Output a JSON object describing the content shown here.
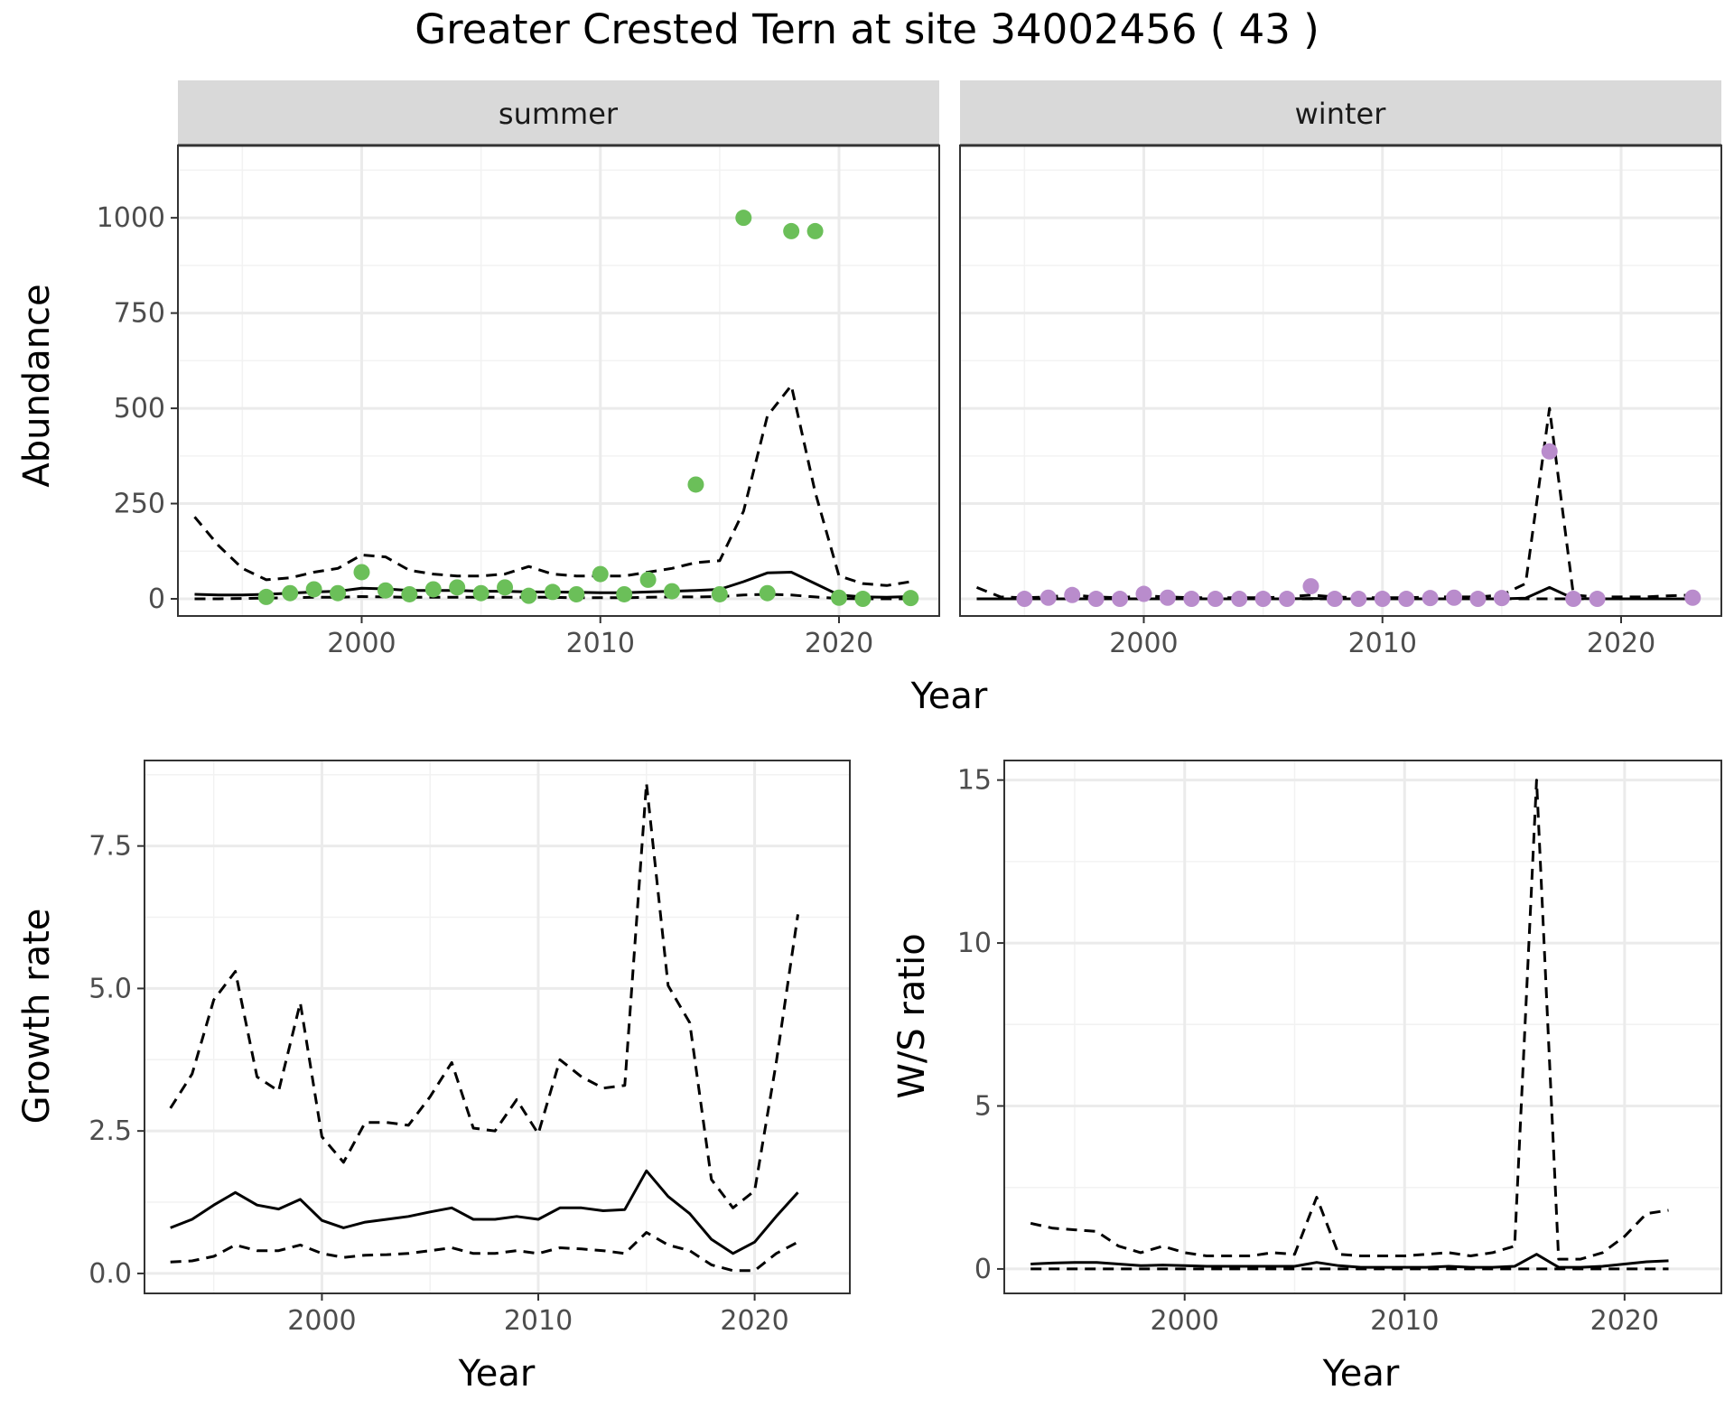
{
  "title": "Greater Crested Tern at site 34002456 ( 43 )",
  "colors": {
    "summer_points": "#6bbf59",
    "winter_points": "#b98ccc",
    "lines": "#000000",
    "strip": "#d9d9d9"
  },
  "chart_data": [
    {
      "type": "line",
      "facet": "summer",
      "xlabel": "Year",
      "ylabel": "Abundance",
      "xlim": [
        1992.3,
        2024.2
      ],
      "ylim": [
        -45,
        1190
      ],
      "xticks": [
        2000,
        2010,
        2020
      ],
      "yticks": [
        0,
        250,
        500,
        750,
        1000
      ],
      "grid": true,
      "x": [
        1993,
        1994,
        1995,
        1996,
        1997,
        1998,
        1999,
        2000,
        2001,
        2002,
        2003,
        2004,
        2005,
        2006,
        2007,
        2008,
        2009,
        2010,
        2011,
        2012,
        2013,
        2014,
        2015,
        2016,
        2017,
        2018,
        2019,
        2020,
        2021,
        2022,
        2023
      ],
      "series": [
        {
          "role": "estimate",
          "style": "solid",
          "values": [
            12,
            10,
            10,
            12,
            15,
            18,
            20,
            28,
            26,
            22,
            22,
            22,
            20,
            20,
            18,
            18,
            17,
            16,
            16,
            18,
            20,
            22,
            25,
            45,
            68,
            70,
            40,
            10,
            5,
            4,
            6
          ]
        },
        {
          "role": "upper",
          "style": "dashed",
          "values": [
            215,
            140,
            80,
            50,
            55,
            70,
            80,
            115,
            110,
            75,
            65,
            60,
            60,
            65,
            85,
            65,
            60,
            60,
            60,
            70,
            80,
            95,
            100,
            230,
            480,
            560,
            280,
            60,
            40,
            35,
            45
          ]
        },
        {
          "role": "lower",
          "style": "dashed",
          "values": [
            0,
            0,
            1,
            2,
            3,
            4,
            4,
            6,
            5,
            4,
            4,
            4,
            4,
            4,
            4,
            4,
            3,
            3,
            3,
            4,
            5,
            5,
            6,
            10,
            12,
            10,
            5,
            1,
            0,
            0,
            0
          ]
        }
      ],
      "points": {
        "x": [
          1996,
          1997,
          1998,
          1999,
          2000,
          2001,
          2002,
          2003,
          2004,
          2005,
          2006,
          2007,
          2008,
          2009,
          2010,
          2011,
          2012,
          2013,
          2014,
          2015,
          2016,
          2017,
          2018,
          2019,
          2020,
          2021,
          2023
        ],
        "y": [
          5,
          15,
          25,
          15,
          70,
          22,
          12,
          25,
          30,
          15,
          30,
          8,
          18,
          12,
          65,
          12,
          50,
          20,
          300,
          12,
          1000,
          15,
          965,
          965,
          3,
          0,
          2
        ]
      }
    },
    {
      "type": "line",
      "facet": "winter",
      "xlabel": "Year",
      "ylabel": "Abundance",
      "xlim": [
        1992.3,
        2024.2
      ],
      "ylim": [
        -45,
        1190
      ],
      "xticks": [
        2000,
        2010,
        2020
      ],
      "yticks": [
        0,
        250,
        500,
        750,
        1000
      ],
      "grid": true,
      "x": [
        1993,
        1994,
        1995,
        1996,
        1997,
        1998,
        1999,
        2000,
        2001,
        2002,
        2003,
        2004,
        2005,
        2006,
        2007,
        2008,
        2009,
        2010,
        2011,
        2012,
        2013,
        2014,
        2015,
        2016,
        2017,
        2018,
        2019,
        2020,
        2021,
        2022,
        2023
      ],
      "series": [
        {
          "role": "estimate",
          "style": "solid",
          "values": [
            0,
            0,
            0,
            0,
            0,
            0,
            0,
            0,
            0,
            0,
            0,
            0,
            0,
            0,
            1,
            0,
            0,
            0,
            0,
            0,
            0,
            0,
            0,
            2,
            30,
            1,
            0,
            0,
            0,
            0,
            0
          ]
        },
        {
          "role": "upper",
          "style": "dashed",
          "values": [
            30,
            5,
            3,
            5,
            10,
            5,
            3,
            8,
            5,
            3,
            3,
            3,
            3,
            5,
            10,
            5,
            3,
            3,
            3,
            5,
            5,
            5,
            10,
            40,
            500,
            10,
            5,
            5,
            5,
            8,
            10
          ]
        },
        {
          "role": "lower",
          "style": "dashed",
          "values": [
            0,
            0,
            0,
            0,
            0,
            0,
            0,
            0,
            0,
            0,
            0,
            0,
            0,
            0,
            0,
            0,
            0,
            0,
            0,
            0,
            0,
            0,
            0,
            0,
            0,
            0,
            0,
            0,
            0,
            0,
            0
          ]
        }
      ],
      "points": {
        "x": [
          1995,
          1996,
          1997,
          1998,
          1999,
          2000,
          2001,
          2002,
          2003,
          2004,
          2005,
          2006,
          2007,
          2008,
          2009,
          2010,
          2011,
          2012,
          2013,
          2014,
          2015,
          2017,
          2018,
          2019,
          2023
        ],
        "y": [
          0,
          3,
          10,
          0,
          0,
          13,
          3,
          0,
          0,
          0,
          0,
          0,
          33,
          0,
          0,
          0,
          0,
          2,
          3,
          0,
          2,
          387,
          0,
          0,
          3
        ]
      }
    },
    {
      "type": "line",
      "xlabel": "Year",
      "ylabel": "Growth rate",
      "xlim": [
        1991.8,
        2024.4
      ],
      "ylim": [
        -0.35,
        9.0
      ],
      "xticks": [
        2000,
        2010,
        2020
      ],
      "yticks": [
        0.0,
        2.5,
        5.0,
        7.5
      ],
      "ytick_labels": [
        "0.0",
        "2.5",
        "5.0",
        "7.5"
      ],
      "grid": true,
      "x": [
        1993,
        1994,
        1995,
        1996,
        1997,
        1998,
        1999,
        2000,
        2001,
        2002,
        2003,
        2004,
        2005,
        2006,
        2007,
        2008,
        2009,
        2010,
        2011,
        2012,
        2013,
        2014,
        2015,
        2016,
        2017,
        2018,
        2019,
        2020,
        2021,
        2022
      ],
      "series": [
        {
          "role": "estimate",
          "style": "solid",
          "values": [
            0.8,
            0.95,
            1.2,
            1.42,
            1.2,
            1.13,
            1.3,
            0.93,
            0.8,
            0.9,
            0.95,
            1.0,
            1.08,
            1.15,
            0.95,
            0.95,
            1.0,
            0.95,
            1.15,
            1.15,
            1.1,
            1.12,
            1.8,
            1.35,
            1.05,
            0.6,
            0.35,
            0.55,
            1.0,
            1.42
          ]
        },
        {
          "role": "upper",
          "style": "dashed",
          "values": [
            2.9,
            3.5,
            4.8,
            5.3,
            3.45,
            3.2,
            4.75,
            2.4,
            1.95,
            2.65,
            2.65,
            2.6,
            3.1,
            3.7,
            2.55,
            2.5,
            3.05,
            2.45,
            3.75,
            3.45,
            3.25,
            3.3,
            8.6,
            5.05,
            4.4,
            1.65,
            1.15,
            1.45,
            3.7,
            6.3
          ]
        },
        {
          "role": "lower",
          "style": "dashed",
          "values": [
            0.2,
            0.22,
            0.3,
            0.5,
            0.4,
            0.4,
            0.5,
            0.35,
            0.28,
            0.32,
            0.33,
            0.35,
            0.4,
            0.45,
            0.35,
            0.35,
            0.4,
            0.35,
            0.45,
            0.43,
            0.4,
            0.35,
            0.72,
            0.5,
            0.4,
            0.15,
            0.05,
            0.05,
            0.35,
            0.55
          ]
        }
      ]
    },
    {
      "type": "line",
      "xlabel": "Year",
      "ylabel": "W/S ratio",
      "xlim": [
        1991.8,
        2024.4
      ],
      "ylim": [
        -0.75,
        15.6
      ],
      "xticks": [
        2000,
        2010,
        2020
      ],
      "yticks": [
        0,
        5,
        10,
        15
      ],
      "grid": true,
      "x": [
        1993,
        1994,
        1995,
        1996,
        1997,
        1998,
        1999,
        2000,
        2001,
        2002,
        2003,
        2004,
        2005,
        2006,
        2007,
        2008,
        2009,
        2010,
        2011,
        2012,
        2013,
        2014,
        2015,
        2016,
        2017,
        2018,
        2019,
        2020,
        2021,
        2022
      ],
      "series": [
        {
          "role": "estimate",
          "style": "solid",
          "values": [
            0.15,
            0.18,
            0.2,
            0.2,
            0.15,
            0.1,
            0.12,
            0.1,
            0.08,
            0.08,
            0.08,
            0.08,
            0.08,
            0.2,
            0.1,
            0.05,
            0.05,
            0.05,
            0.05,
            0.08,
            0.05,
            0.05,
            0.08,
            0.45,
            0.05,
            0.05,
            0.08,
            0.15,
            0.22,
            0.25
          ]
        },
        {
          "role": "upper",
          "style": "dashed",
          "values": [
            1.4,
            1.25,
            1.2,
            1.15,
            0.7,
            0.5,
            0.7,
            0.5,
            0.4,
            0.4,
            0.4,
            0.5,
            0.45,
            2.2,
            0.45,
            0.4,
            0.4,
            0.4,
            0.45,
            0.5,
            0.4,
            0.5,
            0.7,
            15.0,
            0.3,
            0.3,
            0.5,
            1.0,
            1.7,
            1.8
          ]
        },
        {
          "role": "lower",
          "style": "dashed",
          "values": [
            0,
            0,
            0,
            0,
            0,
            0,
            0,
            0,
            0,
            0,
            0,
            0,
            0,
            0,
            0,
            0,
            0,
            0,
            0,
            0,
            0,
            0,
            0,
            0,
            0,
            0,
            0,
            0,
            0,
            0
          ]
        }
      ]
    }
  ]
}
